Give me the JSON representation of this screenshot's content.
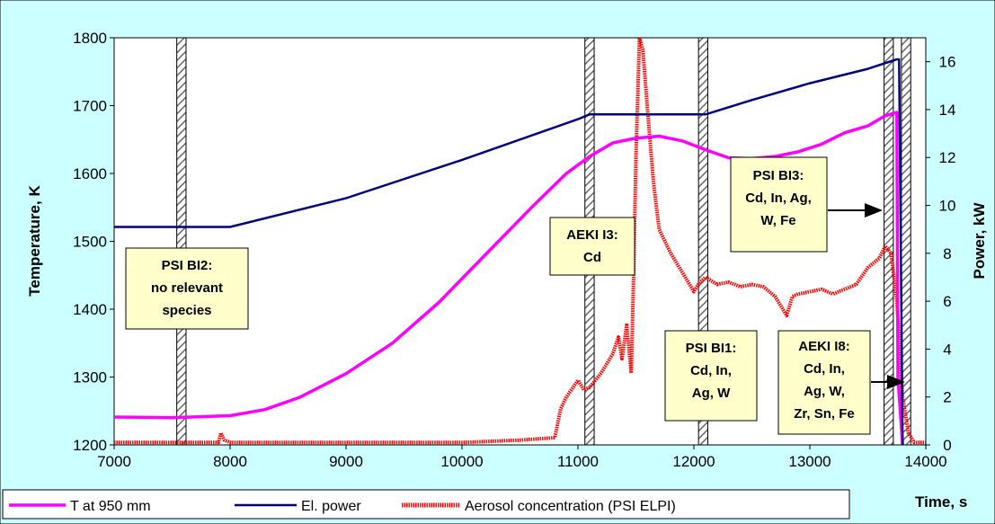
{
  "chart_data": {
    "type": "line",
    "xlabel": "Time, s",
    "ylabel_left": "Temperature, K",
    "ylabel_right": "Power, kW",
    "xlim": [
      7000,
      14000
    ],
    "xticks": [
      7000,
      8000,
      9000,
      10000,
      11000,
      12000,
      13000,
      14000
    ],
    "ylim_left": [
      1200,
      1800
    ],
    "yticks_left": [
      1200,
      1300,
      1400,
      1500,
      1600,
      1700,
      1800
    ],
    "ylim_right": [
      0,
      17
    ],
    "yticks_right": [
      0,
      2,
      4,
      6,
      8,
      10,
      12,
      14,
      16
    ],
    "legend_position": "bottom",
    "series": [
      {
        "name": "T at 950 mm",
        "axis": "left",
        "color": "#ff00ff",
        "x": [
          7000,
          7500,
          8000,
          8300,
          8600,
          9000,
          9400,
          9800,
          10200,
          10600,
          10900,
          11100,
          11300,
          11500,
          11700,
          11900,
          12100,
          12300,
          12500,
          12700,
          12900,
          13100,
          13300,
          13500,
          13650,
          13750,
          13760,
          13800
        ],
        "y": [
          1241,
          1240,
          1243,
          1252,
          1270,
          1305,
          1350,
          1410,
          1480,
          1550,
          1600,
          1625,
          1645,
          1652,
          1655,
          1648,
          1635,
          1623,
          1622,
          1625,
          1632,
          1643,
          1660,
          1670,
          1685,
          1690,
          1300,
          1200
        ]
      },
      {
        "name": "El. power",
        "axis": "right",
        "color": "#00007f",
        "x": [
          7000,
          7500,
          8000,
          9000,
          10000,
          11000,
          11100,
          11500,
          12000,
          12100,
          12500,
          13000,
          13500,
          13750,
          13770,
          13800
        ],
        "y": [
          9.1,
          9.1,
          9.1,
          10.3,
          11.9,
          13.6,
          13.8,
          13.8,
          13.8,
          13.8,
          14.4,
          15.1,
          15.7,
          16.1,
          16.1,
          0
        ]
      },
      {
        "name": "Aerosol concentration (PSI ELPI)",
        "axis": "right",
        "color": "#ff0000",
        "x": [
          7000,
          7900,
          7920,
          7950,
          8000,
          9000,
          10000,
          10500,
          10800,
          10850,
          10900,
          11000,
          11050,
          11100,
          11200,
          11300,
          11350,
          11380,
          11420,
          11460,
          11480,
          11500,
          11530,
          11560,
          11600,
          11650,
          11700,
          11800,
          11900,
          12000,
          12050,
          12100,
          12200,
          12300,
          12400,
          12500,
          12600,
          12700,
          12800,
          12850,
          12900,
          13000,
          13100,
          13200,
          13300,
          13400,
          13500,
          13600,
          13650,
          13700,
          13750,
          13800,
          13850,
          13900,
          14000
        ],
        "y": [
          0.1,
          0.1,
          0.5,
          0.2,
          0.1,
          0.1,
          0.1,
          0.2,
          0.3,
          1.5,
          2.0,
          2.7,
          2.3,
          2.4,
          3.0,
          3.8,
          4.5,
          3.6,
          5.0,
          3.0,
          7.0,
          12.0,
          17.0,
          16.5,
          14.0,
          11.0,
          9.0,
          8.0,
          7.2,
          6.4,
          6.8,
          7.0,
          6.7,
          6.8,
          6.6,
          6.7,
          6.6,
          6.2,
          5.4,
          6.2,
          6.3,
          6.4,
          6.5,
          6.3,
          6.5,
          6.7,
          7.4,
          7.8,
          8.3,
          8.0,
          6.0,
          2.0,
          0.5,
          0.1,
          0.1
        ]
      }
    ],
    "sampling_windows": [
      {
        "x_start": 7540,
        "x_end": 7620
      },
      {
        "x_start": 11060,
        "x_end": 11140
      },
      {
        "x_start": 12040,
        "x_end": 12120
      },
      {
        "x_start": 13640,
        "x_end": 13720
      },
      {
        "x_start": 13790,
        "x_end": 13870
      }
    ],
    "annotations": [
      {
        "lines": [
          "PSI BI2:",
          "no relevant",
          "species"
        ]
      },
      {
        "lines": [
          "AEKI I3:",
          "Cd"
        ]
      },
      {
        "lines": [
          "PSI BI1:",
          "Cd, In,",
          "Ag, W"
        ]
      },
      {
        "lines": [
          "PSI BI3:",
          "Cd, In, Ag,",
          "W,  Fe"
        ]
      },
      {
        "lines": [
          "AEKI I8:",
          "Cd, In,",
          "Ag, W,",
          "Zr, Sn, Fe"
        ]
      }
    ]
  }
}
